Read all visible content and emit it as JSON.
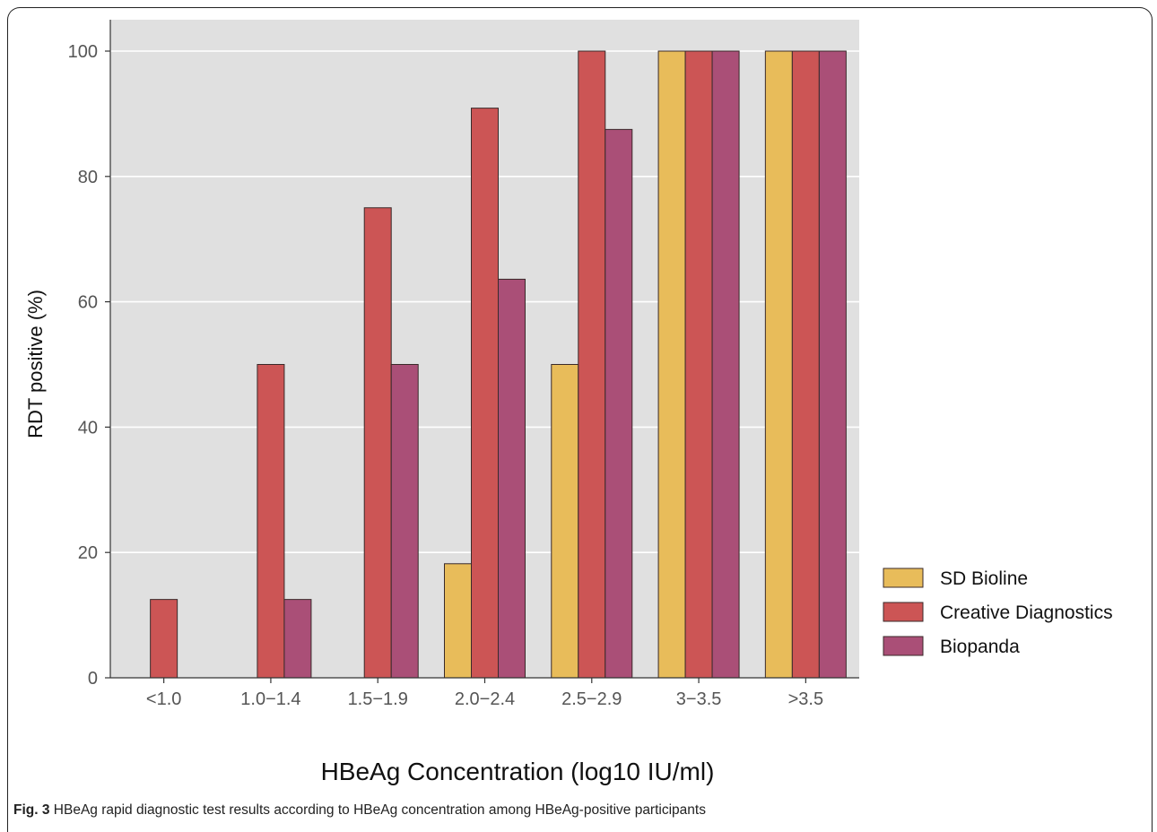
{
  "chart_data": {
    "type": "bar",
    "categories": [
      "<1.0",
      "1.0−1.4",
      "1.5−1.9",
      "2.0−2.4",
      "2.5−2.9",
      "3−3.5",
      ">3.5"
    ],
    "series": [
      {
        "name": "SD Bioline",
        "color": "#E8BC5A",
        "values": [
          0,
          0,
          0,
          18.2,
          50,
          100,
          100
        ]
      },
      {
        "name": "Creative Diagnostics",
        "color": "#CC5555",
        "values": [
          12.5,
          50,
          75,
          90.9,
          100,
          100,
          100
        ]
      },
      {
        "name": "Biopanda",
        "color": "#AA4F77",
        "values": [
          0,
          12.5,
          50,
          63.6,
          87.5,
          100,
          100
        ]
      }
    ],
    "xlabel": "HBeAg Concentration (log10 IU/ml)",
    "ylabel": "RDT positive (%)",
    "ylim": [
      0,
      100
    ],
    "yticks": [
      0,
      20,
      40,
      60,
      80,
      100
    ],
    "grid": true,
    "legend_position": "right"
  },
  "caption": {
    "label": "Fig. 3",
    "text": " HBeAg rapid diagnostic test results according to HBeAg concentration among HBeAg-positive participants"
  }
}
